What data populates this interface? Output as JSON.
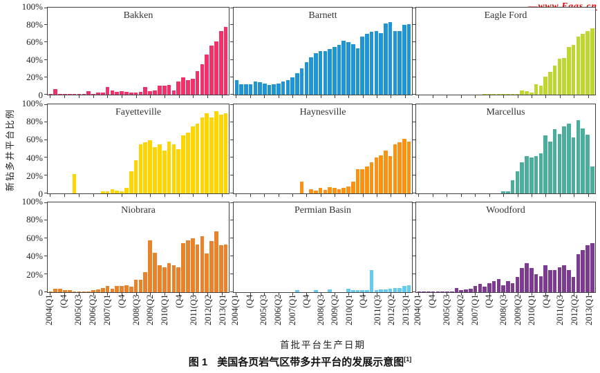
{
  "watermark": {
    "text": "www.Egas.cn",
    "dash": "—",
    "color": "#e60000"
  },
  "y_axis": {
    "title": "新钻多井平台比例",
    "tick_labels": [
      "100%",
      "80%",
      "60%",
      "40%",
      "20%",
      "0"
    ]
  },
  "x_axis": {
    "title": "首批平台生产日期",
    "tick_labels": [
      "2004(Q1",
      "(Q4",
      "2005(Q3",
      "2006(Q2",
      "2007(Q1",
      "(Q4",
      "2008(Q3",
      "2009(Q2",
      "2010(Q1",
      "(Q4",
      "2011(Q3",
      "2012(Q2",
      "2013(Q1"
    ]
  },
  "caption": {
    "label": "图 1",
    "text": "美国各页岩气区带多井平台的发展示意图",
    "superscript": "[1]"
  },
  "chart_data": {
    "type": "bar",
    "layout": "3x3-small-multiples",
    "unit": "percent-of-new-wells-on-multiwell-pads",
    "ylim": [
      0,
      100
    ],
    "grid": false,
    "categories": [
      "2004Q1",
      "2004Q2",
      "2004Q3",
      "2004Q4",
      "2005Q1",
      "2005Q2",
      "2005Q3",
      "2005Q4",
      "2006Q1",
      "2006Q2",
      "2006Q3",
      "2006Q4",
      "2007Q1",
      "2007Q2",
      "2007Q3",
      "2007Q4",
      "2008Q1",
      "2008Q2",
      "2008Q3",
      "2008Q4",
      "2009Q1",
      "2009Q2",
      "2009Q3",
      "2009Q4",
      "2010Q1",
      "2010Q2",
      "2010Q3",
      "2010Q4",
      "2011Q1",
      "2011Q2",
      "2011Q3",
      "2011Q4",
      "2012Q1",
      "2012Q2",
      "2012Q3",
      "2012Q4",
      "2013Q1",
      "2013Q2"
    ],
    "panels": [
      {
        "name": "Bakken",
        "color": "#f2306a",
        "values": [
          1,
          6,
          0.5,
          1,
          1,
          0.5,
          1,
          1,
          4,
          1,
          2,
          2,
          9,
          5,
          3,
          4,
          3,
          2,
          2,
          3,
          9,
          4,
          5,
          10,
          10,
          11,
          5,
          15,
          20,
          17,
          18,
          27,
          35,
          46,
          56,
          61,
          73,
          78
        ]
      },
      {
        "name": "Barnett",
        "color": "#1f95d4",
        "values": [
          17,
          12,
          12,
          12,
          15,
          14,
          13,
          11,
          12,
          13,
          15,
          17,
          20,
          25,
          30,
          37,
          43,
          48,
          50,
          50,
          52,
          55,
          57,
          62,
          60,
          58,
          53,
          67,
          70,
          72,
          73,
          71,
          82,
          83,
          73,
          73,
          80,
          81
        ]
      },
      {
        "name": "Eagle Ford",
        "color": "#bfd730",
        "values": [
          0,
          0,
          0,
          0,
          0,
          0,
          0,
          0,
          0,
          0,
          0,
          0,
          0,
          0,
          0.5,
          1,
          1,
          1,
          1,
          1,
          1,
          1,
          5,
          4,
          2,
          12,
          10,
          21,
          26,
          33,
          41,
          42,
          55,
          57,
          67,
          70,
          73,
          76
        ]
      },
      {
        "name": "Fayetteville",
        "color": "#ffd500",
        "values": [
          0,
          0,
          0,
          0,
          0,
          22,
          0,
          0,
          0,
          0,
          0,
          2,
          2,
          5,
          3,
          2,
          6,
          25,
          37,
          55,
          57,
          60,
          52,
          55,
          48,
          58,
          55,
          50,
          65,
          68,
          75,
          78,
          85,
          90,
          85,
          92,
          88,
          90
        ]
      },
      {
        "name": "Haynesville",
        "color": "#fb9213",
        "values": [
          0,
          0,
          0,
          0,
          0,
          0,
          0,
          0,
          0,
          0,
          0,
          0,
          0,
          0,
          13,
          0,
          5,
          3,
          6,
          4,
          7,
          6,
          5,
          6,
          8,
          13,
          27,
          27,
          30,
          35,
          40,
          43,
          48,
          42,
          55,
          57,
          61,
          58
        ]
      },
      {
        "name": "Marcellus",
        "color": "#4bad9c",
        "values": [
          0,
          0,
          0,
          0,
          0,
          0,
          0,
          0,
          0,
          0,
          0,
          0,
          0,
          0,
          0,
          0,
          0,
          0,
          2,
          2,
          15,
          25,
          35,
          42,
          40,
          42,
          45,
          65,
          58,
          72,
          67,
          75,
          78,
          63,
          82,
          73,
          66,
          30
        ]
      },
      {
        "name": "Niobrara",
        "color": "#e8822b",
        "values": [
          1,
          4,
          4,
          2,
          2,
          1,
          1,
          1,
          1,
          2,
          3,
          5,
          7,
          4,
          7,
          7,
          8,
          6,
          14,
          14,
          22,
          58,
          44,
          30,
          28,
          32,
          30,
          28,
          55,
          58,
          60,
          53,
          62,
          43,
          57,
          68,
          52,
          53
        ]
      },
      {
        "name": "Permian Basin",
        "color": "#63ccf0",
        "values": [
          0,
          0,
          0,
          0,
          0,
          0,
          0,
          0,
          0,
          0,
          0,
          0,
          0,
          2,
          0,
          0,
          0,
          2,
          0,
          0,
          3,
          0,
          0,
          0,
          4,
          2,
          2,
          2,
          2,
          25,
          2,
          3,
          3,
          4,
          5,
          5,
          7,
          8
        ]
      },
      {
        "name": "Woodford",
        "color": "#7c3a91",
        "values": [
          1,
          1,
          1,
          1,
          1,
          1,
          1,
          1,
          5,
          2,
          3,
          4,
          7,
          9,
          6,
          10,
          12,
          15,
          8,
          12,
          10,
          17,
          27,
          32,
          27,
          20,
          18,
          30,
          25,
          25,
          28,
          30,
          25,
          17,
          42,
          47,
          52,
          55
        ]
      }
    ]
  }
}
